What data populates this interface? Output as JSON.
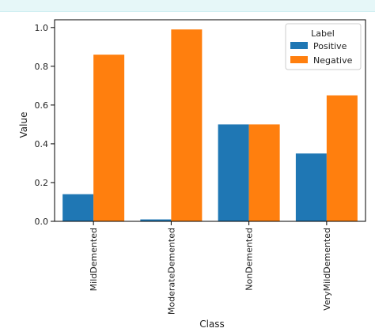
{
  "colors": {
    "positive": "#1f77b4",
    "negative": "#ff7f0e",
    "axis": "#000000",
    "frame_tint": "#e6f7f8"
  },
  "chart_data": {
    "type": "bar",
    "title": "",
    "xlabel": "Class",
    "ylabel": "Value",
    "categories": [
      "MildDemented",
      "ModerateDemented",
      "NonDemented",
      "VeryMildDemented"
    ],
    "series": [
      {
        "name": "Positive",
        "color": "#1f77b4",
        "values": [
          0.14,
          0.01,
          0.5,
          0.35
        ]
      },
      {
        "name": "Negative",
        "color": "#ff7f0e",
        "values": [
          0.86,
          0.99,
          0.5,
          0.65
        ]
      }
    ],
    "ylim": [
      0,
      1.04
    ],
    "yticks": [
      "0.0",
      "0.2",
      "0.4",
      "0.6",
      "0.8",
      "1.0"
    ],
    "grid": false,
    "legend": {
      "title": "Label",
      "placement": "top-right"
    }
  }
}
